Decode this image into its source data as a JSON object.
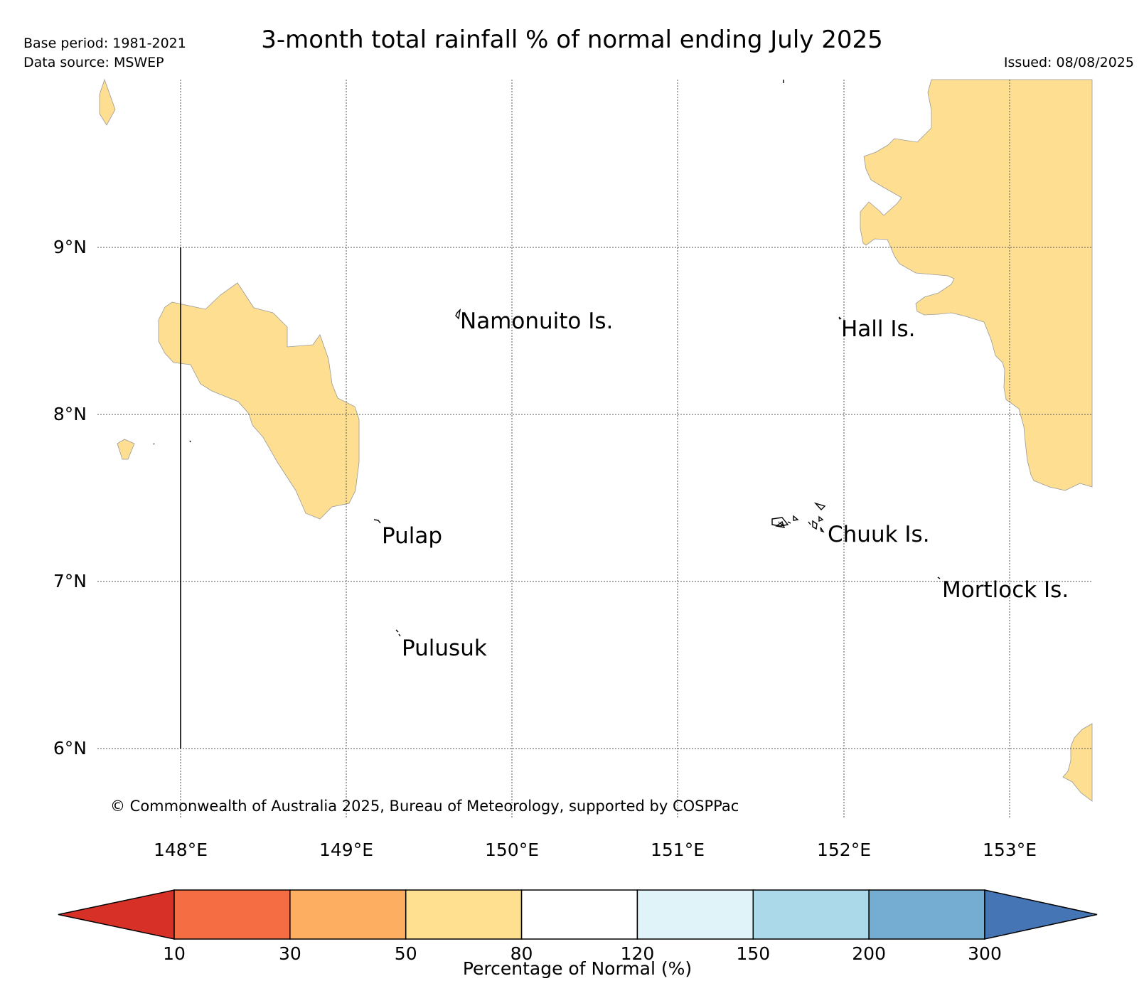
{
  "header": {
    "title": "3-month total rainfall % of normal ending July 2025",
    "base_period": "Base period: 1981-2021",
    "data_source": "Data source: MSWEP",
    "issued": "Issued: 08/08/2025"
  },
  "map": {
    "lon_range": [
      147.5,
      153.5
    ],
    "lat_range": [
      5.5,
      10.0
    ],
    "land_fill_color": "#fedf92",
    "lat_ticks": [
      "9°N",
      "8°N",
      "7°N",
      "6°N"
    ],
    "lon_ticks": [
      "148°E",
      "149°E",
      "150°E",
      "151°E",
      "152°E",
      "153°E"
    ],
    "place_labels": [
      "Namonuito Is.",
      "Hall Is.",
      "Pulap",
      "Chuuk Is.",
      "Mortlock Is.",
      "Pulusuk"
    ],
    "copyright": "© Commonwealth of Australia 2025, Bureau of Meteorology, supported by COSPPac"
  },
  "colorbar": {
    "title": "Percentage of Normal (%)",
    "tick_labels": [
      "10",
      "30",
      "50",
      "80",
      "120",
      "150",
      "200",
      "300"
    ],
    "bins": [
      {
        "range": "<10",
        "color": "#d73027"
      },
      {
        "range": "10-30",
        "color": "#f46d43"
      },
      {
        "range": "30-50",
        "color": "#fdae61"
      },
      {
        "range": "50-80",
        "color": "#fee090"
      },
      {
        "range": "80-120",
        "color": "#ffffff"
      },
      {
        "range": "120-150",
        "color": "#e0f3f8"
      },
      {
        "range": "150-200",
        "color": "#abd9e9"
      },
      {
        "range": "200-300",
        "color": "#74add1"
      },
      {
        "range": ">300",
        "color": "#4575b4"
      }
    ]
  }
}
